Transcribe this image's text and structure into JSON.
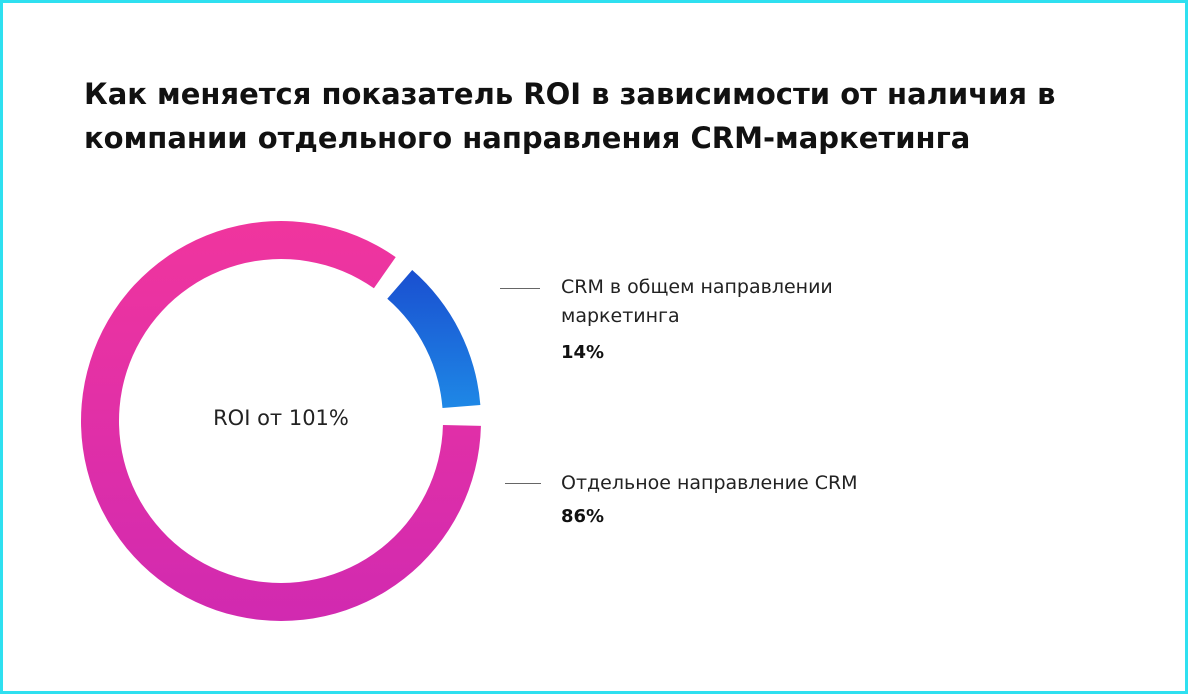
{
  "chart_data": {
    "type": "pie",
    "title": "Как меняется показатель ROI в зависимости от наличия в компании отдельного направления CRM-маркетинга",
    "center_label": "ROI от 101%",
    "categories": [
      "CRM в общем направлении маркетинга",
      "Отдельное направление CRM"
    ],
    "values": [
      14,
      86
    ],
    "value_labels": [
      "14%",
      "86%"
    ],
    "colors": {
      "segment_1_start": "#1a4fd0",
      "segment_1_end": "#1e88e6",
      "segment_2_start": "#f0359e",
      "segment_2_end": "#d12ab0"
    }
  },
  "frame": {
    "border_color": "#2ee0f0"
  }
}
